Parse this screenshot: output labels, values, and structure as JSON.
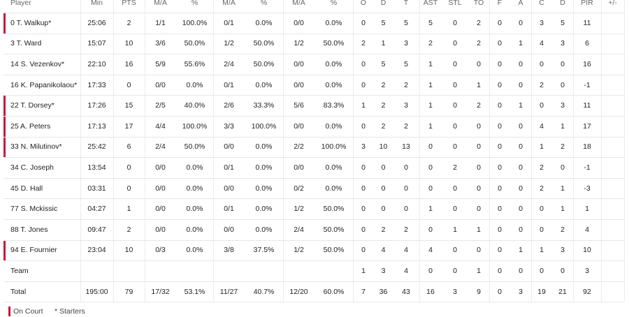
{
  "table": {
    "columns": [
      "Player",
      "Min",
      "PTS",
      "M/A",
      "%",
      "M/A",
      "%",
      "M/A",
      "%",
      "O",
      "D",
      "T",
      "AST",
      "STL",
      "TO",
      "F",
      "A",
      "C",
      "D",
      "PIR",
      "+/-"
    ],
    "rows": [
      {
        "on_court": true,
        "cells": [
          "0 T. Walkup*",
          "25:06",
          "2",
          "1/1",
          "100.0%",
          "0/1",
          "0.0%",
          "0/0",
          "0.0%",
          "0",
          "5",
          "5",
          "5",
          "0",
          "2",
          "0",
          "0",
          "3",
          "5",
          "11",
          null
        ]
      },
      {
        "on_court": false,
        "cells": [
          "3 T. Ward",
          "15:07",
          "10",
          "3/6",
          "50.0%",
          "1/2",
          "50.0%",
          "1/2",
          "50.0%",
          "2",
          "1",
          "3",
          "2",
          "0",
          "2",
          "0",
          "1",
          "4",
          "3",
          "6",
          null
        ]
      },
      {
        "on_court": false,
        "cells": [
          "14 S. Vezenkov*",
          "22:10",
          "16",
          "5/9",
          "55.6%",
          "2/4",
          "50.0%",
          "0/0",
          "0.0%",
          "0",
          "5",
          "5",
          "1",
          "0",
          "0",
          "0",
          "0",
          "0",
          "0",
          "16",
          null
        ]
      },
      {
        "on_court": false,
        "cells": [
          "16 K. Papanikolaou*",
          "17:33",
          "0",
          "0/0",
          "0.0%",
          "0/1",
          "0.0%",
          "0/0",
          "0.0%",
          "0",
          "2",
          "2",
          "1",
          "0",
          "1",
          "0",
          "0",
          "2",
          "0",
          "-1",
          null
        ]
      },
      {
        "on_court": true,
        "cells": [
          "22 T. Dorsey*",
          "17:26",
          "15",
          "2/5",
          "40.0%",
          "2/6",
          "33.3%",
          "5/6",
          "83.3%",
          "1",
          "2",
          "3",
          "1",
          "0",
          "2",
          "0",
          "1",
          "0",
          "3",
          "11",
          null
        ]
      },
      {
        "on_court": true,
        "cells": [
          "25 A. Peters",
          "17:13",
          "17",
          "4/4",
          "100.0%",
          "3/3",
          "100.0%",
          "0/0",
          "0.0%",
          "0",
          "2",
          "2",
          "1",
          "0",
          "0",
          "0",
          "0",
          "4",
          "1",
          "17",
          null
        ]
      },
      {
        "on_court": true,
        "cells": [
          "33 N. Milutinov*",
          "25:42",
          "6",
          "2/4",
          "50.0%",
          "0/0",
          "0.0%",
          "2/2",
          "100.0%",
          "3",
          "10",
          "13",
          "0",
          "0",
          "0",
          "0",
          "0",
          "1",
          "2",
          "18",
          null
        ]
      },
      {
        "on_court": false,
        "cells": [
          "34 C. Joseph",
          "13:54",
          "0",
          "0/0",
          "0.0%",
          "0/1",
          "0.0%",
          "0/0",
          "0.0%",
          "0",
          "0",
          "0",
          "0",
          "2",
          "0",
          "0",
          "0",
          "2",
          "0",
          "-1",
          null
        ]
      },
      {
        "on_court": false,
        "cells": [
          "45 D. Hall",
          "03:31",
          "0",
          "0/0",
          "0.0%",
          "0/0",
          "0.0%",
          "0/2",
          "0.0%",
          "0",
          "0",
          "0",
          "0",
          "0",
          "0",
          "0",
          "0",
          "2",
          "1",
          "-3",
          null
        ]
      },
      {
        "on_court": false,
        "cells": [
          "77 S. Mckissic",
          "04:27",
          "1",
          "0/0",
          "0.0%",
          "0/1",
          "0.0%",
          "1/2",
          "50.0%",
          "0",
          "0",
          "0",
          "1",
          "0",
          "0",
          "0",
          "0",
          "0",
          "1",
          "1",
          null
        ]
      },
      {
        "on_court": false,
        "cells": [
          "88 T. Jones",
          "09:47",
          "2",
          "0/0",
          "0.0%",
          "0/0",
          "0.0%",
          "2/4",
          "50.0%",
          "0",
          "2",
          "2",
          "0",
          "1",
          "1",
          "0",
          "0",
          "0",
          "2",
          "4",
          null
        ]
      },
      {
        "on_court": true,
        "cells": [
          "94 E. Fournier",
          "23:04",
          "10",
          "0/3",
          "0.0%",
          "3/8",
          "37.5%",
          "1/2",
          "50.0%",
          "0",
          "4",
          "4",
          "4",
          "0",
          "0",
          "0",
          "1",
          "1",
          "3",
          "10",
          null
        ]
      },
      {
        "on_court": false,
        "cells": [
          "Team",
          null,
          null,
          null,
          null,
          null,
          null,
          null,
          null,
          "1",
          "3",
          "4",
          "0",
          "0",
          "1",
          "0",
          "0",
          "0",
          "0",
          "3",
          null
        ]
      },
      {
        "on_court": false,
        "cells": [
          "Total",
          "195:00",
          "79",
          "17/32",
          "53.1%",
          "11/27",
          "40.7%",
          "12/20",
          "60.0%",
          "7",
          "36",
          "43",
          "16",
          "3",
          "9",
          "0",
          "3",
          "19",
          "21",
          "92",
          null
        ]
      }
    ]
  },
  "legend": {
    "on_court": "On Court",
    "starters": "* Starters"
  }
}
